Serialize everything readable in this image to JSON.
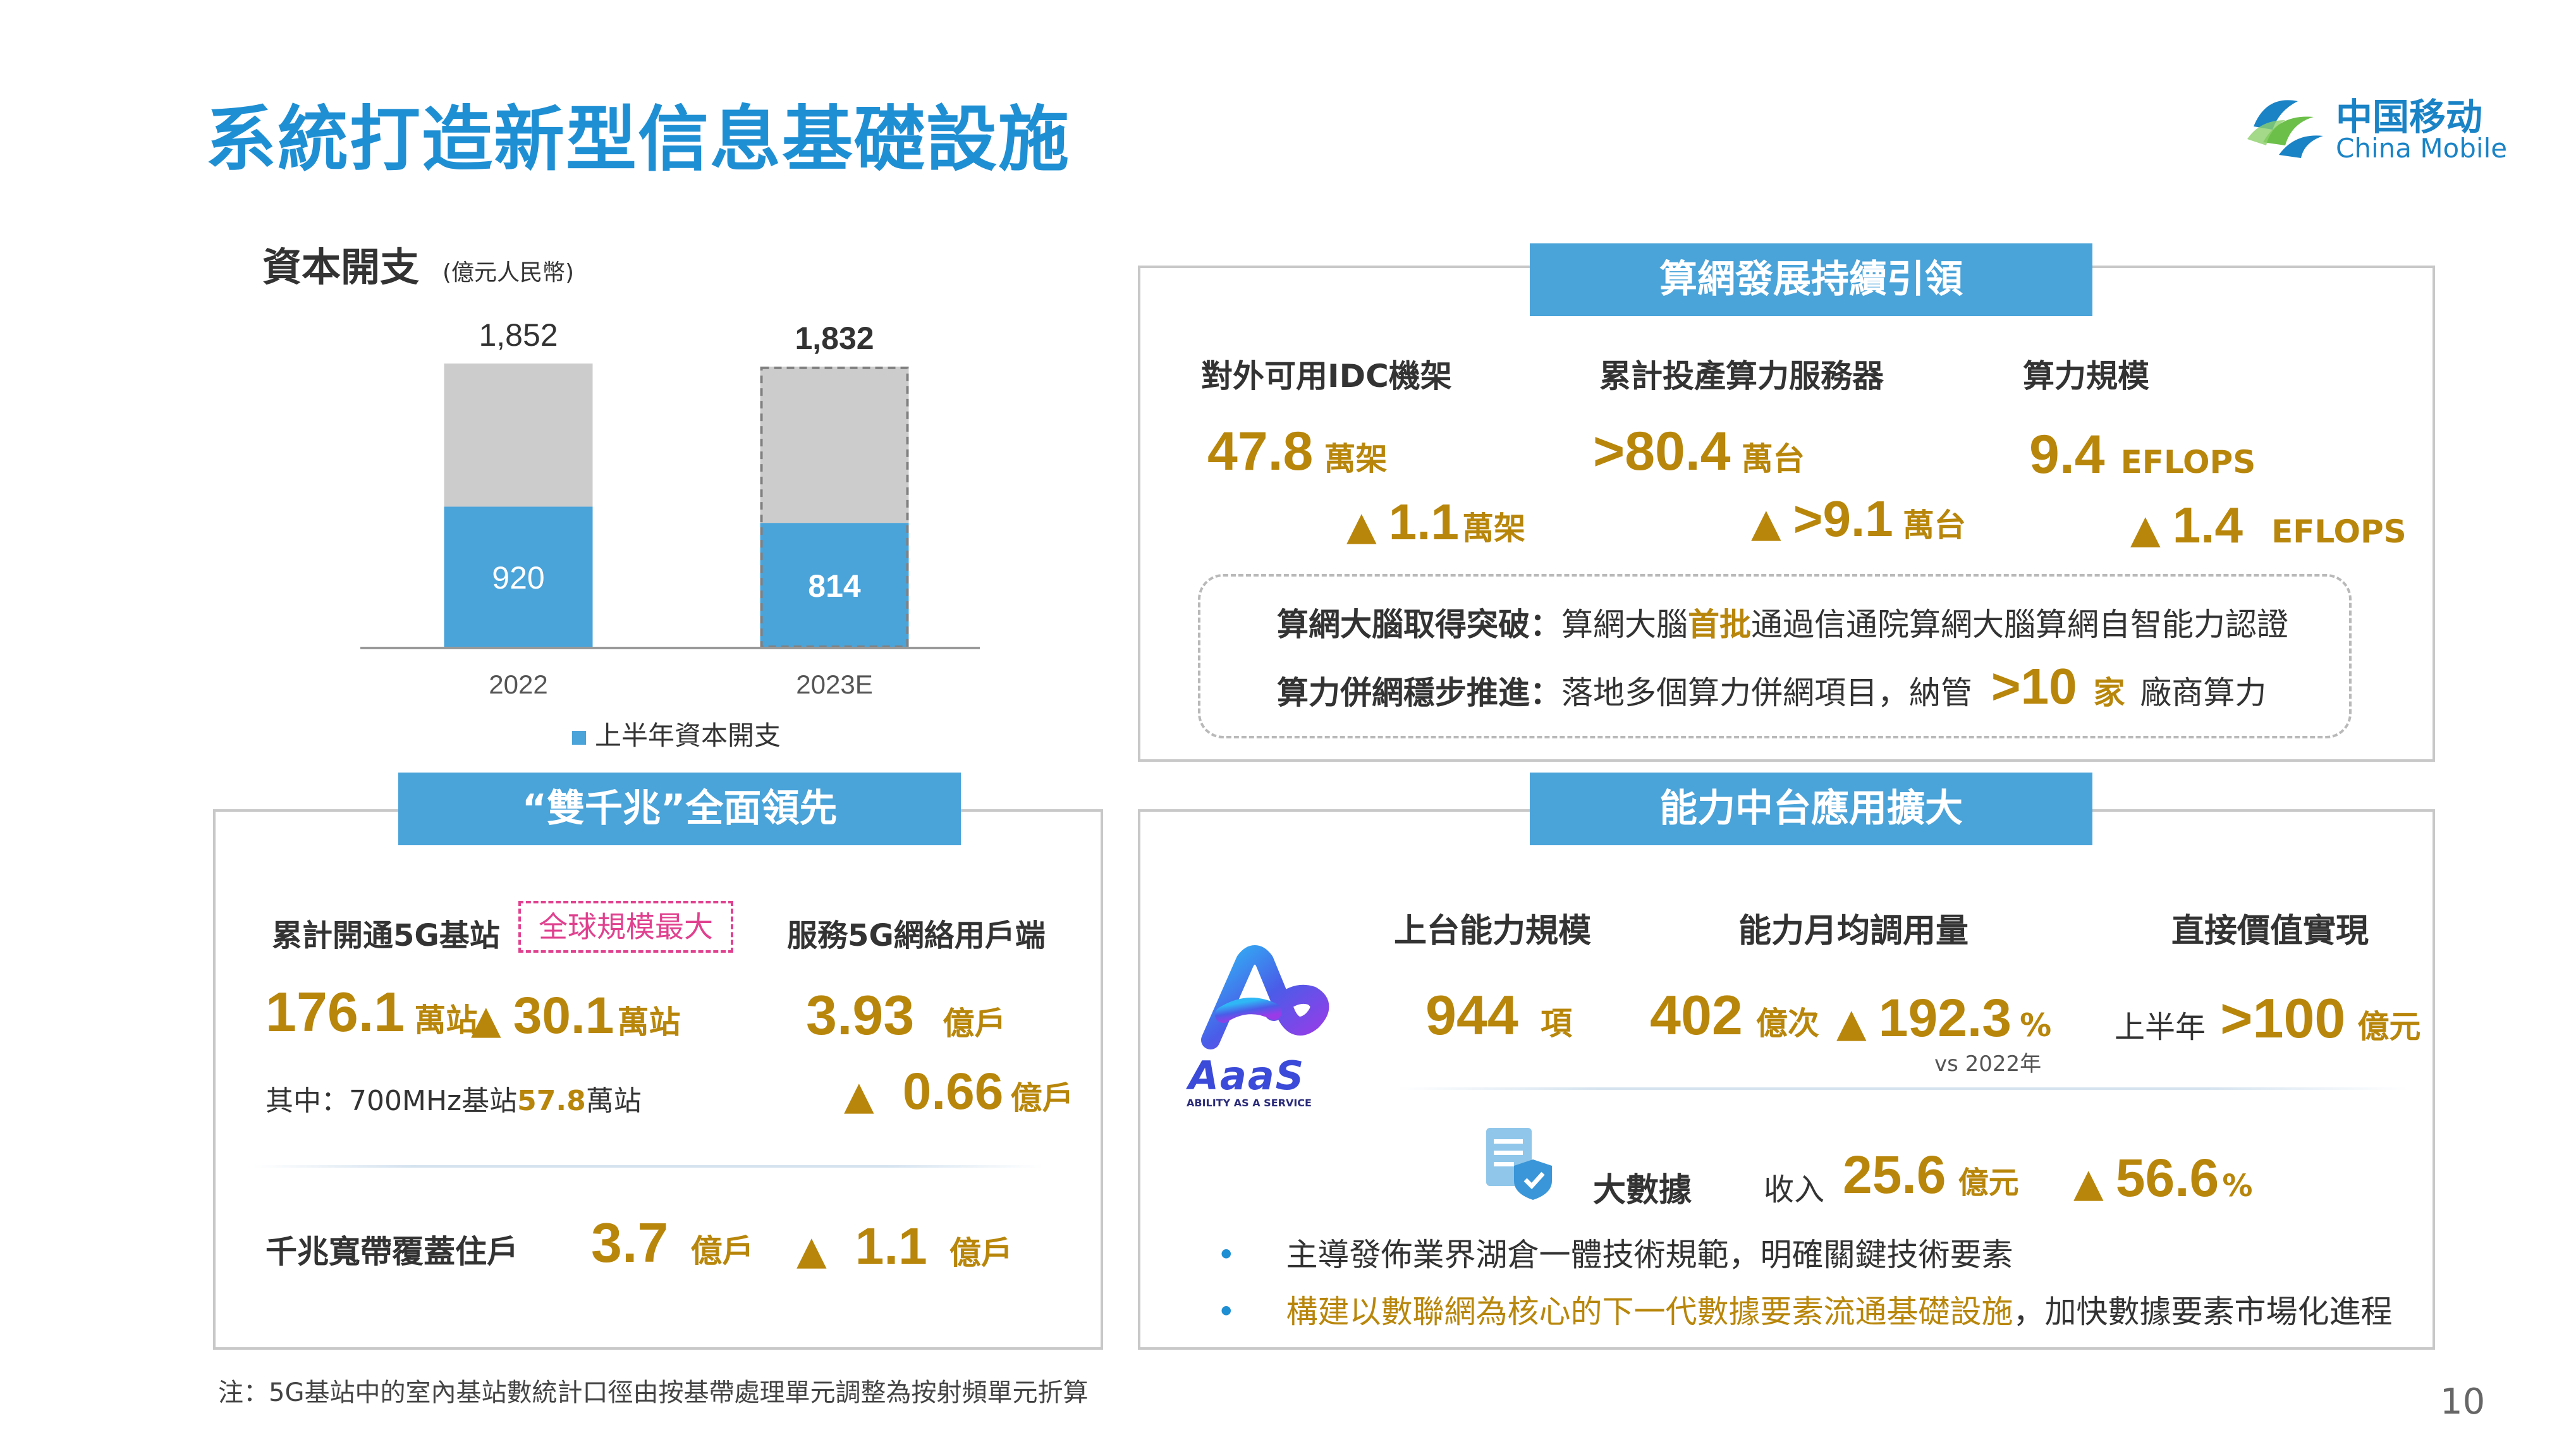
{
  "title": "系統打造新型信息基礎設施",
  "logo": {
    "cn": "中国移动",
    "en": "China Mobile"
  },
  "capex": {
    "title": "資本開支",
    "unit": "(億元人民幣)",
    "legend": "上半年資本開支"
  },
  "chart_data": {
    "type": "bar",
    "categories": [
      "2022",
      "2023E"
    ],
    "series": [
      {
        "name": "上半年資本開支",
        "values": [
          920,
          814
        ]
      }
    ],
    "totals": [
      1852,
      1832
    ],
    "total_labels": [
      "1,852",
      "1,832"
    ],
    "half_labels": [
      "920",
      "814"
    ],
    "colors": {
      "half": "#4aa3d9",
      "total": "#cccccc"
    },
    "ylim": [
      0,
      1852
    ]
  },
  "compute": {
    "banner": "算網發展持續引領",
    "metrics": [
      {
        "label": "對外可用IDC機架",
        "value": "47.8",
        "unit": "萬架",
        "delta": "1.1",
        "delta_unit": "萬架"
      },
      {
        "label": "累計投產算力服務器",
        "value": ">80.4",
        "unit": "萬台",
        "delta": ">9.1",
        "delta_unit": "萬台"
      },
      {
        "label": "算力規模",
        "value": "9.4",
        "unit": "EFLOPS",
        "delta": "1.4",
        "delta_unit": "EFLOPS"
      }
    ],
    "line1": {
      "label": "算網大腦取得突破：",
      "pre": "算網大腦",
      "highlight": "首批",
      "post": "通過信通院算網大腦算網自智能力認證"
    },
    "line2": {
      "label": "算力併網穩步推進：",
      "pre": "落地多個算力併網項目，納管",
      "value": ">10",
      "unit": "家",
      "post": "廠商算力"
    }
  },
  "gigabit": {
    "banner": "“雙千兆”全面領先",
    "bs_label": "累計開通5G基站",
    "badge": "全球規模最大",
    "bs_value": "176.1",
    "bs_unit": "萬站",
    "bs_delta": "30.1",
    "bs_delta_unit": "萬站",
    "sub_pre": "其中：700MHz基站",
    "sub_value": "57.8",
    "sub_unit": "萬站",
    "users_label": "服務5G網絡用戶端",
    "users_value": "3.93",
    "users_unit": "億戶",
    "users_delta": "0.66",
    "users_delta_unit": "億戶",
    "broadband_label": "千兆寬帶覆蓋住戶",
    "broadband_value": "3.7",
    "broadband_unit": "億戶",
    "broadband_delta": "1.1",
    "broadband_delta_unit": "億戶"
  },
  "capability": {
    "banner": "能力中台應用擴大",
    "aaas_text": "AaaS",
    "aaas_sub": "ABILITY AS A SERVICE",
    "col1_label": "上台能力規模",
    "col1_value": "944",
    "col1_unit": "項",
    "col2_label": "能力月均調用量",
    "col2_value": "402",
    "col2_unit": "億次",
    "col2_delta": "192.3",
    "col2_delta_unit": "%",
    "col2_note": "vs 2022年",
    "col3_label": "直接價值實現",
    "col3_prefix": "上半年",
    "col3_value": ">100",
    "col3_unit": "億元",
    "bigdata_label": "大數據",
    "bigdata_rev": "收入",
    "bigdata_value": "25.6",
    "bigdata_unit": "億元",
    "bigdata_delta": "56.6",
    "bigdata_delta_unit": "%",
    "bullet1": "主導發佈業界湖倉一體技術規範，明確關鍵技術要素",
    "bullet2_highlight": "構建以數聯網為核心的下一代數據要素流通基礎設施",
    "bullet2_rest": "，加快數據要素市場化進程"
  },
  "footnote": "注：5G基站中的室內基站數統計口徑由按基帶處理單元調整為按射頻單元折算",
  "page_number": "10",
  "triangle": "▲",
  "bullet": "•"
}
